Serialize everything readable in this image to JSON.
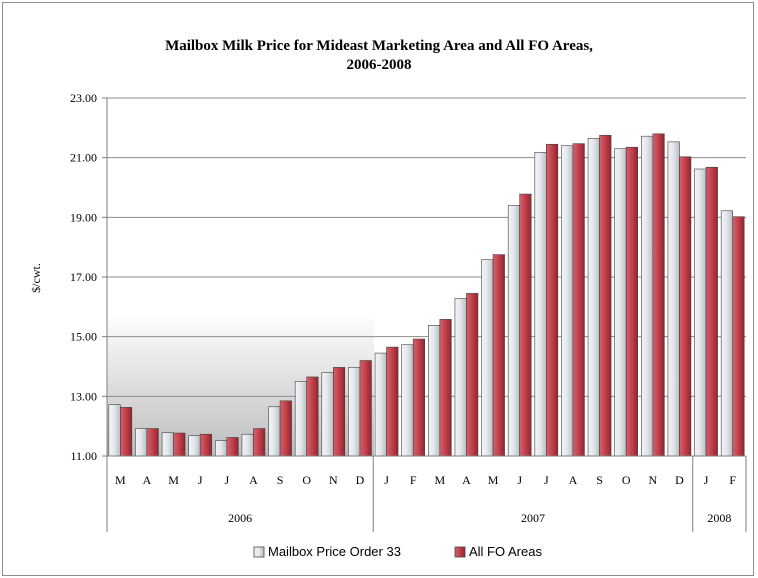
{
  "chart_data": {
    "type": "bar",
    "title_lines": [
      "Mailbox Milk Price for Mideast Marketing Area and All FO Areas,",
      "2006-2008"
    ],
    "ylabel": "$/cwt.",
    "ylim": [
      11,
      23
    ],
    "yticks": [
      "11.00",
      "13.00",
      "15.00",
      "17.00",
      "19.00",
      "21.00",
      "23.00"
    ],
    "grid": "horizontal",
    "legend_position": "bottom",
    "categories": [
      "M",
      "A",
      "M",
      "J",
      "J",
      "A",
      "S",
      "O",
      "N",
      "D",
      "J",
      "F",
      "M",
      "A",
      "M",
      "J",
      "J",
      "A",
      "S",
      "O",
      "N",
      "D",
      "J",
      "F"
    ],
    "year_groups": [
      {
        "label": "2006",
        "count": 10
      },
      {
        "label": "2007",
        "count": 12
      },
      {
        "label": "2008",
        "count": 2
      }
    ],
    "series": [
      {
        "name": "Mailbox Price Order 33",
        "color": "#d9dde3",
        "values": [
          12.72,
          11.92,
          11.78,
          11.68,
          11.52,
          11.73,
          12.65,
          13.5,
          13.8,
          13.97,
          14.45,
          14.73,
          15.38,
          16.28,
          17.58,
          19.4,
          21.18,
          21.4,
          21.65,
          21.3,
          21.72,
          21.53,
          20.62,
          19.22
        ]
      },
      {
        "name": "All FO Areas",
        "color": "#c0404a",
        "values": [
          12.63,
          11.92,
          11.77,
          11.73,
          11.62,
          11.92,
          12.85,
          13.65,
          13.97,
          14.2,
          14.65,
          14.92,
          15.58,
          16.45,
          17.75,
          19.78,
          21.45,
          21.47,
          21.75,
          21.35,
          21.8,
          21.03,
          20.68,
          19.02
        ]
      }
    ]
  }
}
